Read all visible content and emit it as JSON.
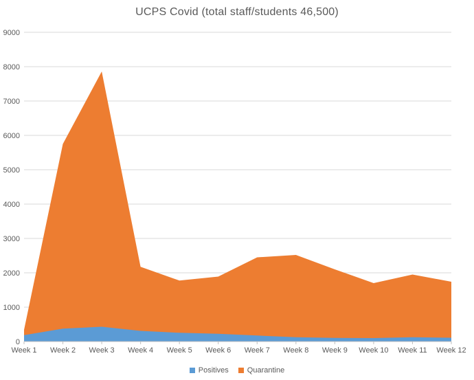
{
  "title": "UCPS Covid (total staff/students 46,500)",
  "chart_data": {
    "type": "area",
    "stacked": true,
    "title": "UCPS Covid (total staff/students 46,500)",
    "categories": [
      "Week 1",
      "Week 2",
      "Week 3",
      "Week 4",
      "Week 5",
      "Week 6",
      "Week 7",
      "Week 8",
      "Week 9",
      "Week 10",
      "Week 11",
      "Week 12"
    ],
    "series": [
      {
        "name": "Positives",
        "color": "#5B9BD5",
        "values": [
          185,
          375,
          430,
          310,
          255,
          225,
          175,
          125,
          105,
          100,
          125,
          110
        ]
      },
      {
        "name": "Quarantine",
        "color": "#ED7D31",
        "values": [
          155,
          5375,
          7430,
          1865,
          1520,
          1665,
          2275,
          2395,
          1995,
          1600,
          1825,
          1630
        ]
      }
    ],
    "stacked_totals": [
      340,
      5750,
      7860,
      2175,
      1775,
      1890,
      2450,
      2520,
      2100,
      1700,
      1950,
      1740
    ],
    "xlabel": "",
    "ylabel": "",
    "ylim": [
      0,
      9000
    ],
    "ytick_step": 1000,
    "yticks": [
      0,
      1000,
      2000,
      3000,
      4000,
      5000,
      6000,
      7000,
      8000,
      9000
    ],
    "grid": true,
    "legend_position": "bottom",
    "colors": {
      "gridline": "#D9D9D9",
      "axis_line": "#BFBFBF",
      "tick": "#BFBFBF",
      "label_text": "#595959",
      "title_text": "#595959",
      "background": "#FFFFFF"
    }
  },
  "legend": {
    "items": [
      {
        "label": "Positives",
        "color": "#5B9BD5"
      },
      {
        "label": "Quarantine",
        "color": "#ED7D31"
      }
    ]
  }
}
